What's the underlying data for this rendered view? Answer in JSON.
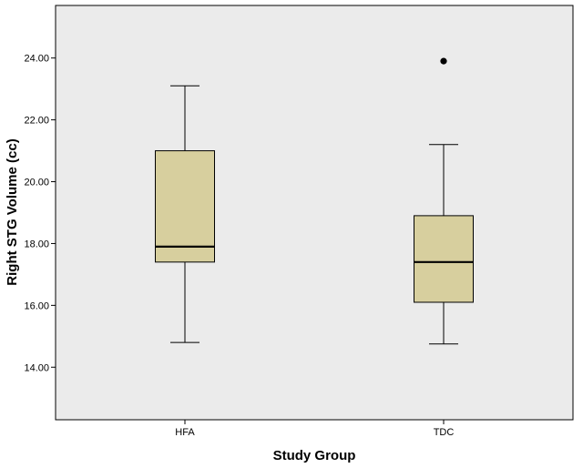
{
  "chart_data": {
    "type": "boxplot",
    "title": "",
    "xlabel": "Study Group",
    "ylabel": "Right STG Volume (cc)",
    "ylim": [
      12.3,
      25.7
    ],
    "y_ticks": [
      "14.00",
      "16.00",
      "18.00",
      "20.00",
      "22.00",
      "24.00"
    ],
    "grid": false,
    "categories": [
      "HFA",
      "TDC"
    ],
    "boxes": [
      {
        "name": "HFA",
        "min": 14.8,
        "q1": 17.4,
        "median": 17.9,
        "q3": 21.0,
        "max": 23.1,
        "outliers": []
      },
      {
        "name": "TDC",
        "min": 14.75,
        "q1": 16.1,
        "median": 17.4,
        "q3": 18.9,
        "max": 21.2,
        "outliers": [
          23.9
        ]
      }
    ],
    "colors": {
      "plot_background": "#ebebeb",
      "box_fill": "#d7cf9e",
      "stroke": "#000000"
    }
  }
}
